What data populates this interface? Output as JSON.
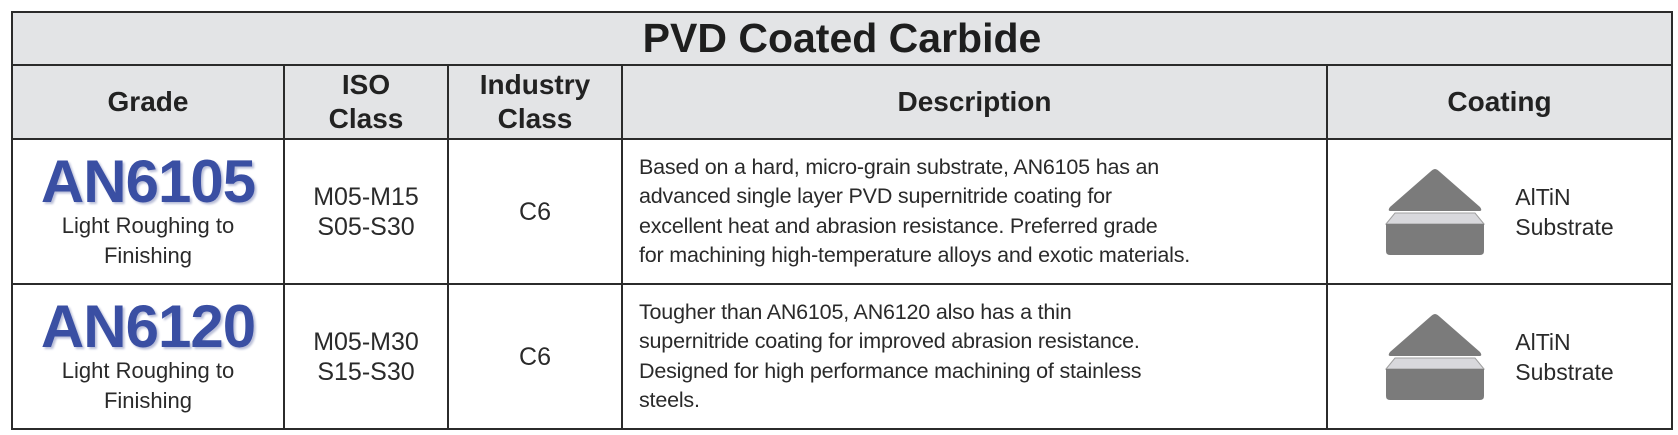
{
  "title": "PVD Coated Carbide",
  "headers": {
    "grade": "Grade",
    "iso_line1": "ISO",
    "iso_line2": "Class",
    "industry_line1": "Industry",
    "industry_line2": "Class",
    "description": "Description",
    "coating": "Coating"
  },
  "rows": [
    {
      "grade": "AN6105",
      "application_line1": "Light Roughing to",
      "application_line2": "Finishing",
      "iso_line1": "M05-M15",
      "iso_line2": "S05-S30",
      "industry": "C6",
      "description_lines": [
        "Based on a hard, micro-grain substrate, AN6105 has an",
        "advanced single layer PVD supernitride coating for",
        "excellent heat and abrasion resistance.  Preferred grade",
        "for machining high-temperature alloys and exotic materials."
      ],
      "coating_layer": "AlTiN",
      "coating_base": "Substrate"
    },
    {
      "grade": "AN6120",
      "application_line1": "Light Roughing to",
      "application_line2": "Finishing",
      "iso_line1": "M05-M30",
      "iso_line2": "S15-S30",
      "industry": "C6",
      "description_lines": [
        "Tougher than AN6105, AN6120 also has a thin",
        "supernitride coating for improved abrasion resistance.",
        "Designed for high performance machining of stainless",
        "steels."
      ],
      "coating_layer": "AlTiN",
      "coating_base": "Substrate"
    }
  ],
  "colors": {
    "grade_text": "#3a4fa3",
    "header_bg": "#e3e4e6",
    "coating_dark": "#7b7b7b",
    "coating_light": "#d8d8dc"
  }
}
